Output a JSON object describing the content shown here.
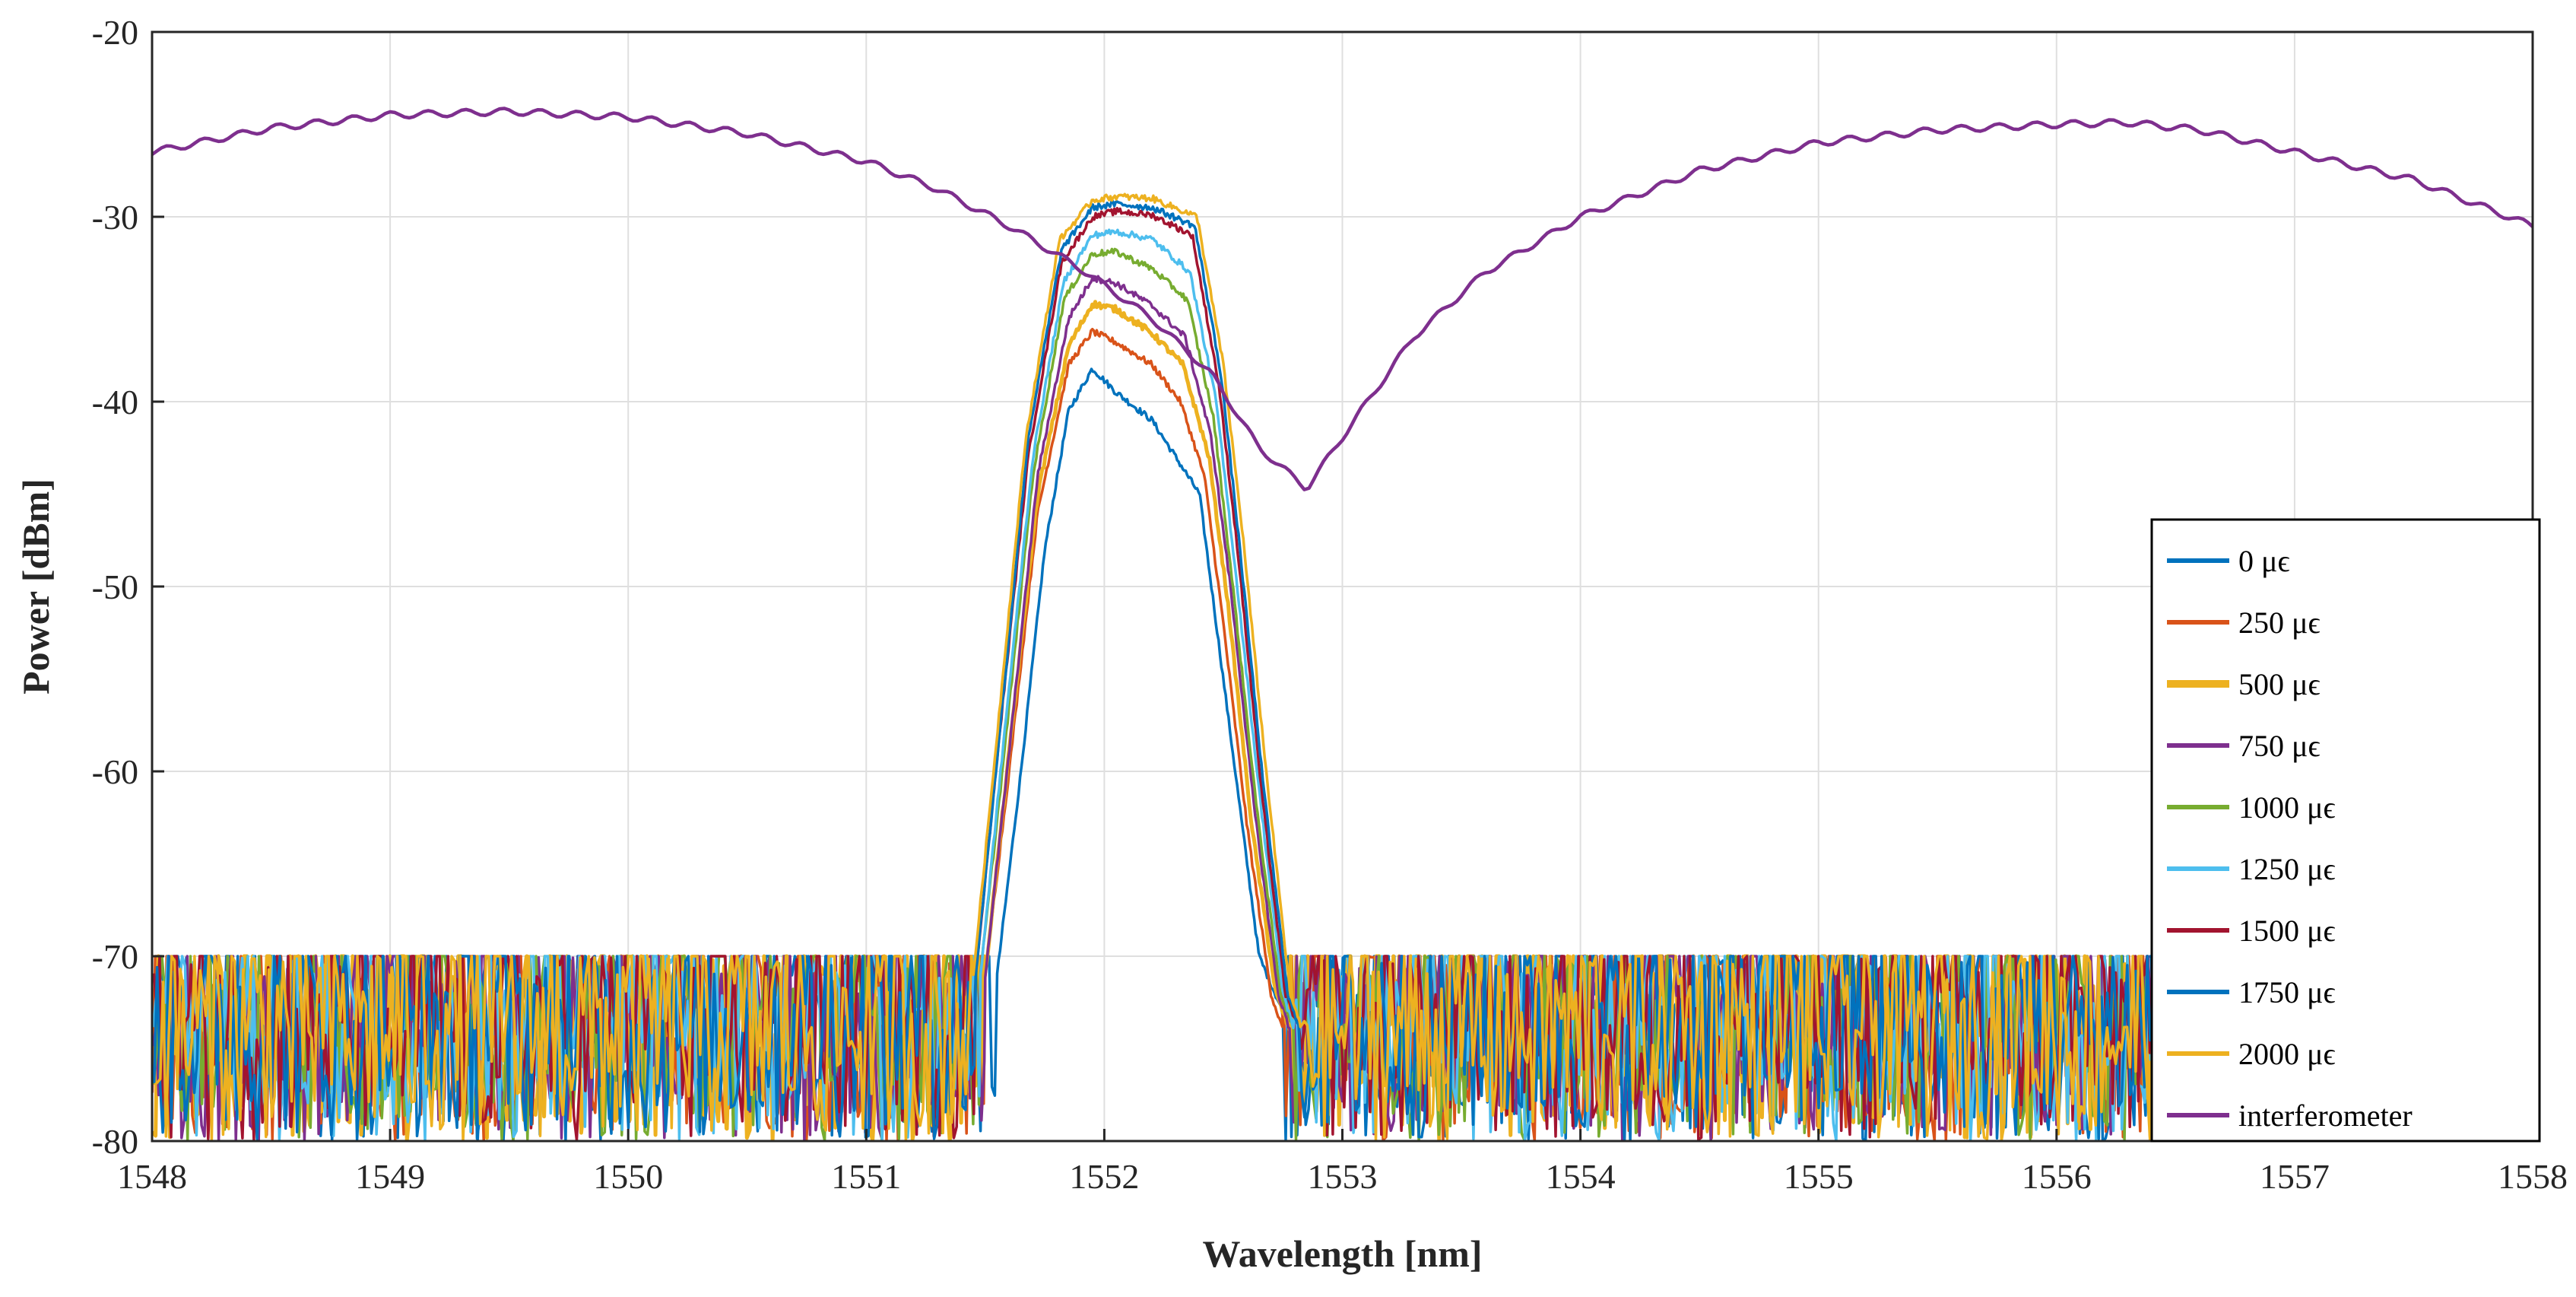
{
  "chart_data": {
    "type": "line",
    "title": "",
    "xlabel": "Wavelength [nm]",
    "ylabel": "Power [dBm]",
    "xlim": [
      1548,
      1558
    ],
    "ylim": [
      -80,
      -20
    ],
    "xticks": [
      1548,
      1549,
      1550,
      1551,
      1552,
      1553,
      1554,
      1555,
      1556,
      1557,
      1558
    ],
    "yticks": [
      -80,
      -70,
      -60,
      -50,
      -40,
      -30,
      -20
    ],
    "xtick_labels": [
      "1548",
      "1549",
      "1550",
      "1551",
      "1552",
      "1553",
      "1554",
      "1555",
      "1556",
      "1557",
      "1558"
    ],
    "ytick_labels": [
      "-80",
      "-70",
      "-60",
      "-50",
      "-40",
      "-30",
      "-20"
    ],
    "grid": true,
    "legend_position": "right-bottom",
    "noise_floor_range": [
      -80,
      -70
    ],
    "series": [
      {
        "name": "0 μϵ",
        "color": "#0072BD",
        "peak": -38.2,
        "left_edge": 1551.55,
        "right_edge": 1552.75,
        "profile": [
          [
            1551.55,
            -71
          ],
          [
            1551.65,
            -60
          ],
          [
            1551.75,
            -48
          ],
          [
            1551.85,
            -40.5
          ],
          [
            1551.95,
            -38.2
          ],
          [
            1552.05,
            -39.5
          ],
          [
            1552.2,
            -41
          ],
          [
            1552.3,
            -43
          ],
          [
            1552.4,
            -45
          ],
          [
            1552.45,
            -50
          ],
          [
            1552.55,
            -60
          ],
          [
            1552.65,
            -70
          ],
          [
            1552.75,
            -73
          ]
        ]
      },
      {
        "name": "250  μϵ",
        "color": "#D95319",
        "peak": -36.2,
        "left_edge": 1551.5,
        "right_edge": 1552.75,
        "profile": [
          [
            1551.5,
            -71
          ],
          [
            1551.6,
            -60
          ],
          [
            1551.72,
            -46
          ],
          [
            1551.85,
            -38
          ],
          [
            1551.95,
            -36.2
          ],
          [
            1552.05,
            -36.8
          ],
          [
            1552.2,
            -38
          ],
          [
            1552.32,
            -40
          ],
          [
            1552.42,
            -44
          ],
          [
            1552.5,
            -52
          ],
          [
            1552.6,
            -63
          ],
          [
            1552.7,
            -72
          ],
          [
            1552.75,
            -74
          ]
        ]
      },
      {
        "name": "500  μϵ",
        "color": "#EDB120",
        "peak": -34.7,
        "left_edge": 1551.5,
        "right_edge": 1552.78,
        "profile": [
          [
            1551.5,
            -71
          ],
          [
            1551.6,
            -59
          ],
          [
            1551.72,
            -45
          ],
          [
            1551.85,
            -37
          ],
          [
            1551.95,
            -34.7
          ],
          [
            1552.05,
            -35
          ],
          [
            1552.2,
            -36.3
          ],
          [
            1552.33,
            -38
          ],
          [
            1552.44,
            -43
          ],
          [
            1552.52,
            -51
          ],
          [
            1552.62,
            -63
          ],
          [
            1552.72,
            -72
          ],
          [
            1552.78,
            -74
          ]
        ]
      },
      {
        "name": "750  μϵ",
        "color": "#7E2F8E",
        "peak": -33.3,
        "left_edge": 1551.5,
        "right_edge": 1552.78,
        "profile": [
          [
            1551.5,
            -71
          ],
          [
            1551.6,
            -59
          ],
          [
            1551.72,
            -44
          ],
          [
            1551.85,
            -35.5
          ],
          [
            1551.95,
            -33.3
          ],
          [
            1552.05,
            -33.6
          ],
          [
            1552.2,
            -34.8
          ],
          [
            1552.34,
            -36.5
          ],
          [
            1552.45,
            -42
          ],
          [
            1552.53,
            -50
          ],
          [
            1552.63,
            -62
          ],
          [
            1552.73,
            -72
          ],
          [
            1552.78,
            -74
          ]
        ]
      },
      {
        "name": "1000  μϵ",
        "color": "#77AC30",
        "peak": -31.9,
        "left_edge": 1551.48,
        "right_edge": 1552.8,
        "profile": [
          [
            1551.48,
            -71
          ],
          [
            1551.58,
            -59
          ],
          [
            1551.7,
            -44
          ],
          [
            1551.83,
            -34.5
          ],
          [
            1551.95,
            -32
          ],
          [
            1552.05,
            -31.9
          ],
          [
            1552.2,
            -32.8
          ],
          [
            1552.35,
            -34.5
          ],
          [
            1552.46,
            -41
          ],
          [
            1552.54,
            -50
          ],
          [
            1552.64,
            -62
          ],
          [
            1552.74,
            -72
          ],
          [
            1552.8,
            -74
          ]
        ]
      },
      {
        "name": "1250  μϵ",
        "color": "#4DBEEE",
        "peak": -30.8,
        "left_edge": 1551.48,
        "right_edge": 1552.8,
        "profile": [
          [
            1551.48,
            -71
          ],
          [
            1551.58,
            -58
          ],
          [
            1551.7,
            -43
          ],
          [
            1551.83,
            -33.5
          ],
          [
            1551.95,
            -31
          ],
          [
            1552.05,
            -30.8
          ],
          [
            1552.2,
            -31.2
          ],
          [
            1552.36,
            -33
          ],
          [
            1552.47,
            -40
          ],
          [
            1552.55,
            -49
          ],
          [
            1552.65,
            -61
          ],
          [
            1552.75,
            -72
          ],
          [
            1552.8,
            -74
          ]
        ]
      },
      {
        "name": "1500  μϵ",
        "color": "#A2142F",
        "peak": -29.7,
        "left_edge": 1551.46,
        "right_edge": 1552.82,
        "profile": [
          [
            1551.46,
            -71
          ],
          [
            1551.56,
            -58
          ],
          [
            1551.68,
            -43
          ],
          [
            1551.82,
            -32.5
          ],
          [
            1551.95,
            -30
          ],
          [
            1552.05,
            -29.7
          ],
          [
            1552.2,
            -29.9
          ],
          [
            1552.37,
            -31
          ],
          [
            1552.48,
            -39
          ],
          [
            1552.56,
            -48
          ],
          [
            1552.66,
            -61
          ],
          [
            1552.76,
            -72
          ],
          [
            1552.82,
            -74
          ]
        ]
      },
      {
        "name": "1750  μϵ",
        "color": "#0072BD",
        "peak": -29.3,
        "left_edge": 1551.46,
        "right_edge": 1552.82,
        "profile": [
          [
            1551.46,
            -71
          ],
          [
            1551.56,
            -58
          ],
          [
            1551.68,
            -42
          ],
          [
            1551.82,
            -31.8
          ],
          [
            1551.95,
            -29.5
          ],
          [
            1552.05,
            -29.3
          ],
          [
            1552.2,
            -29.5
          ],
          [
            1552.38,
            -30.5
          ],
          [
            1552.49,
            -38.5
          ],
          [
            1552.57,
            -48
          ],
          [
            1552.67,
            -61
          ],
          [
            1552.77,
            -72
          ],
          [
            1552.82,
            -74
          ]
        ]
      },
      {
        "name": "2000  μϵ",
        "color": "#EDB120",
        "peak": -28.9,
        "left_edge": 1551.45,
        "right_edge": 1552.83,
        "profile": [
          [
            1551.45,
            -71
          ],
          [
            1551.55,
            -58
          ],
          [
            1551.67,
            -42
          ],
          [
            1551.81,
            -31.3
          ],
          [
            1551.95,
            -29.1
          ],
          [
            1552.05,
            -28.9
          ],
          [
            1552.2,
            -29
          ],
          [
            1552.39,
            -30
          ],
          [
            1552.5,
            -38
          ],
          [
            1552.58,
            -47
          ],
          [
            1552.68,
            -60
          ],
          [
            1552.78,
            -72
          ],
          [
            1552.83,
            -74
          ]
        ]
      },
      {
        "name": "interferometer",
        "color": "#7E2F8E",
        "profile": [
          [
            1548,
            -26.5
          ],
          [
            1548.5,
            -25.2
          ],
          [
            1549,
            -24.5
          ],
          [
            1549.5,
            -24.3
          ],
          [
            1550,
            -24.6
          ],
          [
            1550.5,
            -25.5
          ],
          [
            1551,
            -27
          ],
          [
            1551.3,
            -28.5
          ],
          [
            1551.6,
            -30.5
          ],
          [
            1551.9,
            -32.8
          ],
          [
            1552.2,
            -35.5
          ],
          [
            1552.45,
            -38.5
          ],
          [
            1552.65,
            -42.5
          ],
          [
            1552.85,
            -44.7
          ],
          [
            1553.05,
            -41
          ],
          [
            1553.3,
            -36.5
          ],
          [
            1553.6,
            -33
          ],
          [
            1554,
            -30
          ],
          [
            1554.5,
            -27.5
          ],
          [
            1555,
            -26
          ],
          [
            1555.5,
            -25.3
          ],
          [
            1556,
            -25
          ],
          [
            1556.3,
            -24.9
          ],
          [
            1556.6,
            -25.3
          ],
          [
            1557,
            -26.5
          ],
          [
            1557.5,
            -28
          ],
          [
            1558,
            -30.5
          ]
        ]
      }
    ]
  },
  "colors": {
    "axis": "#262626",
    "grid": "#dfdfdf",
    "legend_border": "#000000"
  }
}
